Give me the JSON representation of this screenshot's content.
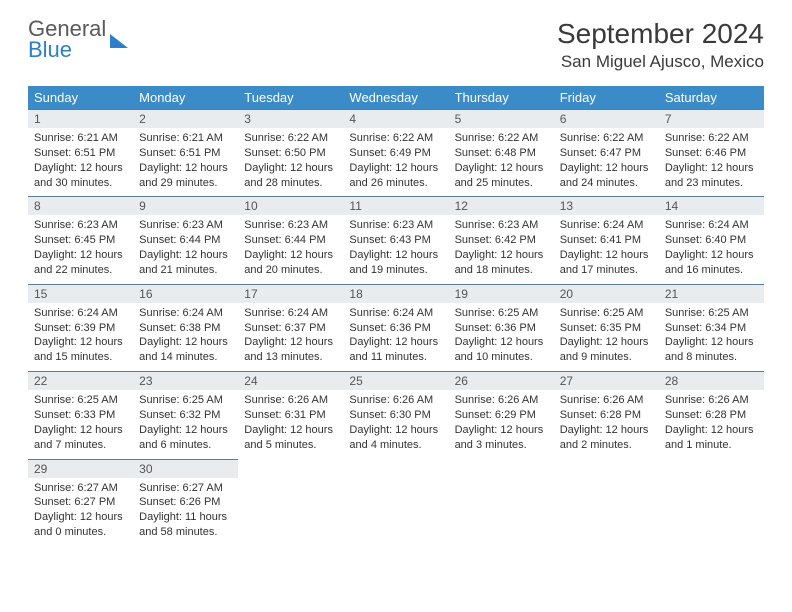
{
  "logo": {
    "line1": "General",
    "line2": "Blue"
  },
  "title": "September 2024",
  "location": "San Miguel Ajusco, Mexico",
  "headers": [
    "Sunday",
    "Monday",
    "Tuesday",
    "Wednesday",
    "Thursday",
    "Friday",
    "Saturday"
  ],
  "colors": {
    "header_bg": "#3b8bc9",
    "header_text": "#ffffff",
    "daynum_bg": "#e9ecef",
    "border": "#5a7a95",
    "logo_gray": "#5a5a5a",
    "logo_blue": "#2d7fc9"
  },
  "typography": {
    "title_fontsize": 28,
    "location_fontsize": 17,
    "header_fontsize": 13,
    "daynum_fontsize": 12,
    "cell_fontsize": 11
  },
  "weeks": [
    [
      {
        "n": "1",
        "sr": "6:21 AM",
        "ss": "6:51 PM",
        "dl": "12 hours and 30 minutes."
      },
      {
        "n": "2",
        "sr": "6:21 AM",
        "ss": "6:51 PM",
        "dl": "12 hours and 29 minutes."
      },
      {
        "n": "3",
        "sr": "6:22 AM",
        "ss": "6:50 PM",
        "dl": "12 hours and 28 minutes."
      },
      {
        "n": "4",
        "sr": "6:22 AM",
        "ss": "6:49 PM",
        "dl": "12 hours and 26 minutes."
      },
      {
        "n": "5",
        "sr": "6:22 AM",
        "ss": "6:48 PM",
        "dl": "12 hours and 25 minutes."
      },
      {
        "n": "6",
        "sr": "6:22 AM",
        "ss": "6:47 PM",
        "dl": "12 hours and 24 minutes."
      },
      {
        "n": "7",
        "sr": "6:22 AM",
        "ss": "6:46 PM",
        "dl": "12 hours and 23 minutes."
      }
    ],
    [
      {
        "n": "8",
        "sr": "6:23 AM",
        "ss": "6:45 PM",
        "dl": "12 hours and 22 minutes."
      },
      {
        "n": "9",
        "sr": "6:23 AM",
        "ss": "6:44 PM",
        "dl": "12 hours and 21 minutes."
      },
      {
        "n": "10",
        "sr": "6:23 AM",
        "ss": "6:44 PM",
        "dl": "12 hours and 20 minutes."
      },
      {
        "n": "11",
        "sr": "6:23 AM",
        "ss": "6:43 PM",
        "dl": "12 hours and 19 minutes."
      },
      {
        "n": "12",
        "sr": "6:23 AM",
        "ss": "6:42 PM",
        "dl": "12 hours and 18 minutes."
      },
      {
        "n": "13",
        "sr": "6:24 AM",
        "ss": "6:41 PM",
        "dl": "12 hours and 17 minutes."
      },
      {
        "n": "14",
        "sr": "6:24 AM",
        "ss": "6:40 PM",
        "dl": "12 hours and 16 minutes."
      }
    ],
    [
      {
        "n": "15",
        "sr": "6:24 AM",
        "ss": "6:39 PM",
        "dl": "12 hours and 15 minutes."
      },
      {
        "n": "16",
        "sr": "6:24 AM",
        "ss": "6:38 PM",
        "dl": "12 hours and 14 minutes."
      },
      {
        "n": "17",
        "sr": "6:24 AM",
        "ss": "6:37 PM",
        "dl": "12 hours and 13 minutes."
      },
      {
        "n": "18",
        "sr": "6:24 AM",
        "ss": "6:36 PM",
        "dl": "12 hours and 11 minutes."
      },
      {
        "n": "19",
        "sr": "6:25 AM",
        "ss": "6:36 PM",
        "dl": "12 hours and 10 minutes."
      },
      {
        "n": "20",
        "sr": "6:25 AM",
        "ss": "6:35 PM",
        "dl": "12 hours and 9 minutes."
      },
      {
        "n": "21",
        "sr": "6:25 AM",
        "ss": "6:34 PM",
        "dl": "12 hours and 8 minutes."
      }
    ],
    [
      {
        "n": "22",
        "sr": "6:25 AM",
        "ss": "6:33 PM",
        "dl": "12 hours and 7 minutes."
      },
      {
        "n": "23",
        "sr": "6:25 AM",
        "ss": "6:32 PM",
        "dl": "12 hours and 6 minutes."
      },
      {
        "n": "24",
        "sr": "6:26 AM",
        "ss": "6:31 PM",
        "dl": "12 hours and 5 minutes."
      },
      {
        "n": "25",
        "sr": "6:26 AM",
        "ss": "6:30 PM",
        "dl": "12 hours and 4 minutes."
      },
      {
        "n": "26",
        "sr": "6:26 AM",
        "ss": "6:29 PM",
        "dl": "12 hours and 3 minutes."
      },
      {
        "n": "27",
        "sr": "6:26 AM",
        "ss": "6:28 PM",
        "dl": "12 hours and 2 minutes."
      },
      {
        "n": "28",
        "sr": "6:26 AM",
        "ss": "6:28 PM",
        "dl": "12 hours and 1 minute."
      }
    ],
    [
      {
        "n": "29",
        "sr": "6:27 AM",
        "ss": "6:27 PM",
        "dl": "12 hours and 0 minutes."
      },
      {
        "n": "30",
        "sr": "6:27 AM",
        "ss": "6:26 PM",
        "dl": "11 hours and 58 minutes."
      },
      null,
      null,
      null,
      null,
      null
    ]
  ],
  "labels": {
    "sunrise": "Sunrise:",
    "sunset": "Sunset:",
    "daylight": "Daylight:"
  }
}
